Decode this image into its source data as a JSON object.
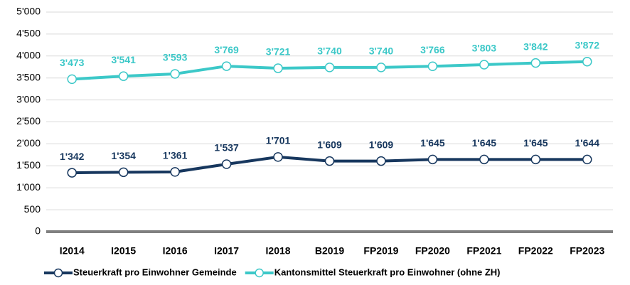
{
  "chart_data": {
    "type": "line",
    "categories": [
      "I2014",
      "I2015",
      "I2016",
      "I2017",
      "I2018",
      "B2019",
      "FP2019",
      "FP2020",
      "FP2021",
      "FP2022",
      "FP2023"
    ],
    "series": [
      {
        "name": "Steuerkraft pro Einwohner Gemeinde",
        "color": "#17375e",
        "values": [
          1342,
          1354,
          1361,
          1537,
          1701,
          1609,
          1609,
          1645,
          1645,
          1645,
          1644
        ],
        "value_labels": [
          "1'342",
          "1'354",
          "1'361",
          "1'537",
          "1'701",
          "1'609",
          "1'609",
          "1'645",
          "1'645",
          "1'645",
          "1'644"
        ]
      },
      {
        "name": "Kantonsmittel Steuerkraft pro Einwohner (ohne ZH)",
        "color": "#3cc8c8",
        "values": [
          3473,
          3541,
          3593,
          3769,
          3721,
          3740,
          3740,
          3766,
          3803,
          3842,
          3872
        ],
        "value_labels": [
          "3'473",
          "3'541",
          "3'593",
          "3'769",
          "3'721",
          "3'740",
          "3'740",
          "3'766",
          "3'803",
          "3'842",
          "3'872"
        ]
      }
    ],
    "ylim": [
      0,
      5000
    ],
    "yticks": [
      0,
      500,
      {
        "value": 1000,
        "label": "1'000"
      },
      {
        "value": 1500,
        "label": "1'500"
      },
      {
        "value": 2000,
        "label": "2'000"
      },
      {
        "value": 2500,
        "label": "2'500"
      },
      {
        "value": 3000,
        "label": "3'000"
      },
      {
        "value": 3500,
        "label": "3'500"
      },
      {
        "value": 4000,
        "label": "4'000"
      },
      {
        "value": 4500,
        "label": "4'500"
      },
      {
        "value": 5000,
        "label": "5'000"
      }
    ],
    "grid": true,
    "legend": "bottom"
  }
}
